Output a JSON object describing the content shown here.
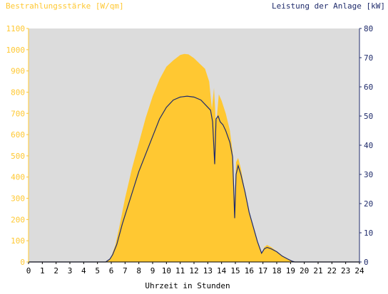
{
  "chart_data": {
    "type": "area",
    "left_axis_title": "Bestrahlungsstärke [W/qm]",
    "right_axis_title": "Leistung der Anlage [kW]",
    "xlabel": "Uhrzeit in Stunden",
    "xlim": [
      0,
      24
    ],
    "ylim_left": [
      0,
      1100
    ],
    "ylim_right": [
      0,
      80
    ],
    "x_ticks": [
      "0",
      "1",
      "2",
      "3",
      "4",
      "5",
      "6",
      "7",
      "8",
      "9",
      "10",
      "11",
      "12",
      "13",
      "14",
      "15",
      "16",
      "17",
      "18",
      "19",
      "20",
      "21",
      "22",
      "23",
      "24"
    ],
    "y_left_ticks": [
      "0",
      "100",
      "200",
      "300",
      "400",
      "500",
      "600",
      "700",
      "800",
      "900",
      "1000",
      "1100"
    ],
    "y_right_ticks": [
      "0",
      "10",
      "20",
      "30",
      "40",
      "50",
      "60",
      "70",
      "80"
    ],
    "grid": false,
    "colors": {
      "plot_background": "#dcdcdc",
      "irradiance_fill": "#ffc832",
      "power_line": "#1f2b6b",
      "left_axis_text": "#ffc832",
      "right_axis_text": "#1f2b6b"
    },
    "series": [
      {
        "axis": "left",
        "kind": "area",
        "points": [
          [
            0,
            0
          ],
          [
            5.5,
            0
          ],
          [
            5.8,
            8
          ],
          [
            6.0,
            25
          ],
          [
            6.3,
            80
          ],
          [
            6.6,
            170
          ],
          [
            7.0,
            300
          ],
          [
            7.5,
            440
          ],
          [
            8.0,
            560
          ],
          [
            8.5,
            680
          ],
          [
            9.0,
            780
          ],
          [
            9.5,
            860
          ],
          [
            10.0,
            920
          ],
          [
            10.5,
            950
          ],
          [
            11.0,
            975
          ],
          [
            11.3,
            980
          ],
          [
            11.6,
            978
          ],
          [
            12.0,
            960
          ],
          [
            12.4,
            935
          ],
          [
            12.8,
            910
          ],
          [
            13.1,
            850
          ],
          [
            13.3,
            720
          ],
          [
            13.45,
            820
          ],
          [
            13.6,
            640
          ],
          [
            13.8,
            790
          ],
          [
            14.0,
            760
          ],
          [
            14.3,
            700
          ],
          [
            14.6,
            620
          ],
          [
            14.8,
            520
          ],
          [
            14.95,
            280
          ],
          [
            15.05,
            470
          ],
          [
            15.2,
            490
          ],
          [
            15.4,
            440
          ],
          [
            15.7,
            330
          ],
          [
            16.0,
            230
          ],
          [
            16.4,
            140
          ],
          [
            16.7,
            80
          ],
          [
            16.9,
            40
          ],
          [
            17.1,
            70
          ],
          [
            17.3,
            80
          ],
          [
            17.6,
            70
          ],
          [
            18.0,
            50
          ],
          [
            18.4,
            30
          ],
          [
            18.8,
            15
          ],
          [
            19.1,
            5
          ],
          [
            19.3,
            0
          ],
          [
            24,
            0
          ]
        ]
      },
      {
        "axis": "right",
        "kind": "line",
        "points": [
          [
            0,
            0
          ],
          [
            5.6,
            0
          ],
          [
            5.9,
            1
          ],
          [
            6.1,
            2.5
          ],
          [
            6.4,
            6
          ],
          [
            6.8,
            13
          ],
          [
            7.2,
            19
          ],
          [
            7.6,
            25
          ],
          [
            8.0,
            31
          ],
          [
            8.5,
            37
          ],
          [
            9.0,
            43
          ],
          [
            9.5,
            49
          ],
          [
            10.0,
            53
          ],
          [
            10.5,
            55.5
          ],
          [
            11.0,
            56.5
          ],
          [
            11.5,
            56.8
          ],
          [
            12.0,
            56.5
          ],
          [
            12.5,
            55.5
          ],
          [
            13.0,
            53
          ],
          [
            13.2,
            52
          ],
          [
            13.35,
            48
          ],
          [
            13.5,
            33.5
          ],
          [
            13.6,
            49
          ],
          [
            13.75,
            50
          ],
          [
            13.9,
            48
          ],
          [
            14.1,
            47
          ],
          [
            14.3,
            45
          ],
          [
            14.6,
            41
          ],
          [
            14.8,
            36
          ],
          [
            14.95,
            15
          ],
          [
            15.05,
            30
          ],
          [
            15.2,
            33
          ],
          [
            15.4,
            30
          ],
          [
            15.7,
            24
          ],
          [
            16.0,
            17
          ],
          [
            16.3,
            12
          ],
          [
            16.6,
            7
          ],
          [
            16.9,
            3
          ],
          [
            17.1,
            4.5
          ],
          [
            17.3,
            5
          ],
          [
            17.6,
            4.5
          ],
          [
            18.0,
            3.5
          ],
          [
            18.4,
            2
          ],
          [
            18.8,
            1
          ],
          [
            19.1,
            0.3
          ],
          [
            19.3,
            0
          ],
          [
            24,
            0
          ]
        ]
      }
    ]
  }
}
